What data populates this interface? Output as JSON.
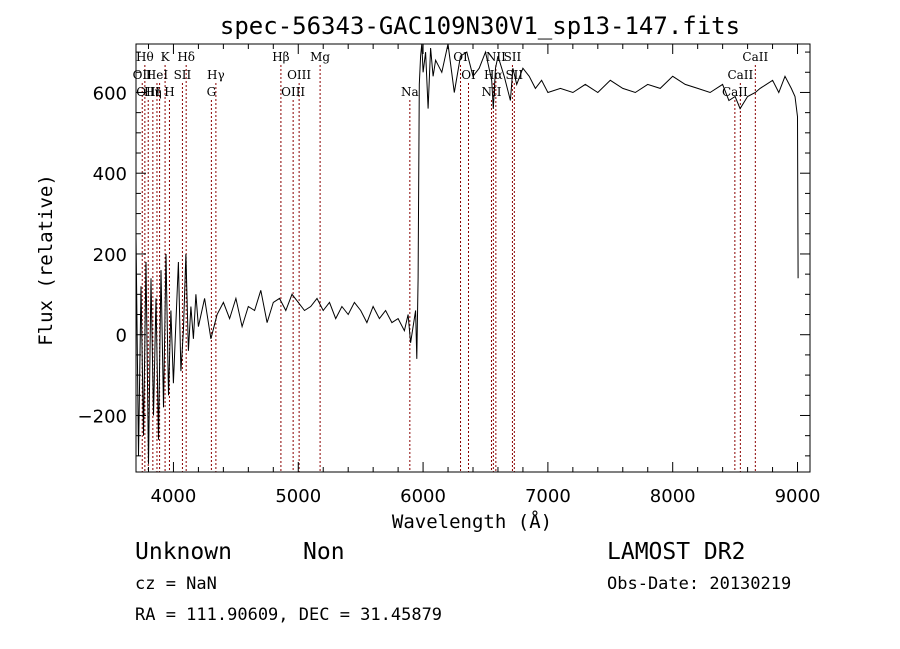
{
  "chart_data": {
    "type": "line",
    "title": "spec-56343-GAC109N30V1_sp13-147.fits",
    "xlabel": "Wavelength (Å)",
    "ylabel": "Flux (relative)",
    "xlim": [
      3700,
      9100
    ],
    "ylim": [
      -340,
      720
    ],
    "xticks": [
      4000,
      5000,
      6000,
      7000,
      8000,
      9000
    ],
    "yticks": [
      -200,
      0,
      200,
      400,
      600
    ],
    "grid": false,
    "legend": "none",
    "line_color": "#000000",
    "marker_color": "#8b0000",
    "series": [
      {
        "x": [
          3700,
          3720,
          3740,
          3760,
          3780,
          3800,
          3820,
          3840,
          3860,
          3880,
          3900,
          3920,
          3940,
          3960,
          3980,
          4000,
          4020,
          4040,
          4060,
          4080,
          4100,
          4120,
          4140,
          4160,
          4180,
          4200,
          4250,
          4300,
          4350,
          4400,
          4450,
          4500,
          4550,
          4600,
          4650,
          4700,
          4750,
          4800,
          4850,
          4900,
          4950,
          5000,
          5050,
          5100,
          5150,
          5200,
          5250,
          5300,
          5350,
          5400,
          5450,
          5500,
          5550,
          5600,
          5650,
          5700,
          5750,
          5800,
          5850,
          5880,
          5900,
          5920,
          5940,
          5950,
          5960,
          5970,
          5980,
          5990,
          6000,
          6020,
          6040,
          6060,
          6080,
          6100,
          6150,
          6200,
          6250,
          6300,
          6350,
          6400,
          6450,
          6500,
          6550,
          6563,
          6580,
          6600,
          6650,
          6700,
          6720,
          6750,
          6800,
          6850,
          6900,
          6950,
          7000,
          7100,
          7200,
          7300,
          7400,
          7500,
          7600,
          7700,
          7800,
          7900,
          8000,
          8100,
          8200,
          8300,
          8400,
          8450,
          8500,
          8540,
          8600,
          8662,
          8700,
          8750,
          8800,
          8850,
          8900,
          8950,
          8980,
          9000,
          9005
        ],
        "y": [
          250,
          -300,
          120,
          -250,
          180,
          -320,
          140,
          -200,
          90,
          -260,
          160,
          -180,
          200,
          -150,
          60,
          -120,
          30,
          180,
          -90,
          10,
          200,
          -40,
          70,
          -10,
          100,
          20,
          90,
          -10,
          50,
          80,
          40,
          90,
          20,
          70,
          60,
          110,
          30,
          80,
          90,
          60,
          100,
          80,
          60,
          70,
          90,
          60,
          80,
          40,
          70,
          50,
          80,
          60,
          30,
          70,
          40,
          60,
          30,
          40,
          10,
          50,
          -20,
          20,
          60,
          -60,
          140,
          620,
          690,
          720,
          650,
          700,
          560,
          710,
          640,
          680,
          650,
          720,
          600,
          690,
          700,
          640,
          660,
          700,
          630,
          560,
          660,
          690,
          640,
          580,
          660,
          620,
          660,
          640,
          610,
          630,
          600,
          610,
          600,
          620,
          600,
          630,
          610,
          600,
          620,
          610,
          640,
          620,
          610,
          600,
          620,
          580,
          590,
          560,
          590,
          600,
          610,
          620,
          630,
          600,
          640,
          610,
          590,
          540,
          140
        ]
      }
    ],
    "line_markers": [
      {
        "w": 3750,
        "label": "OII",
        "row": 1
      },
      {
        "w": 3771,
        "label": "Hθ",
        "row": 0
      },
      {
        "w": 3798,
        "label": "OIII",
        "row": 2
      },
      {
        "w": 3835,
        "label": "Hη",
        "row": 2
      },
      {
        "w": 3868,
        "label": "HeI",
        "row": 1
      },
      {
        "w": 3889,
        "label": "",
        "row": 1
      },
      {
        "w": 3933,
        "label": "K",
        "row": 0
      },
      {
        "w": 3968,
        "label": "H",
        "row": 2
      },
      {
        "w": 4072,
        "label": "SII",
        "row": 1
      },
      {
        "w": 4102,
        "label": "Hδ",
        "row": 0
      },
      {
        "w": 4304,
        "label": "G",
        "row": 2
      },
      {
        "w": 4340,
        "label": "Hγ",
        "row": 1
      },
      {
        "w": 4861,
        "label": "Hβ",
        "row": 0
      },
      {
        "w": 4959,
        "label": "OIII",
        "row": 2
      },
      {
        "w": 5007,
        "label": "OIII",
        "row": 1
      },
      {
        "w": 5175,
        "label": "Mg",
        "row": 0
      },
      {
        "w": 5894,
        "label": "Na",
        "row": 2
      },
      {
        "w": 6300,
        "label": "OI",
        "row": 0
      },
      {
        "w": 6364,
        "label": "OI",
        "row": 1
      },
      {
        "w": 6548,
        "label": "NII",
        "row": 2
      },
      {
        "w": 6563,
        "label": "Hα",
        "row": 1
      },
      {
        "w": 6583,
        "label": "NII",
        "row": 0
      },
      {
        "w": 6716,
        "label": "SII",
        "row": 0
      },
      {
        "w": 6731,
        "label": "SII",
        "row": 1
      },
      {
        "w": 8498,
        "label": "CaII",
        "row": 2
      },
      {
        "w": 8542,
        "label": "CaII",
        "row": 1
      },
      {
        "w": 8662,
        "label": "CaII",
        "row": 0
      }
    ]
  },
  "info": {
    "object_class": "Unknown",
    "subclass": "Non",
    "survey": "LAMOST DR2",
    "redshift": "cz = NaN",
    "obs_date": "Obs-Date: 20130219",
    "coords": "RA = 111.90609, DEC =  31.45879"
  }
}
